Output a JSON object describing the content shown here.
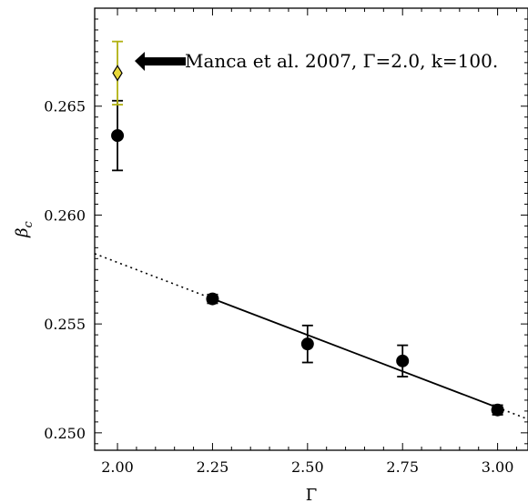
{
  "chart_data": {
    "type": "scatter",
    "xlabel": "Γ",
    "ylabel": "β_c",
    "xlim": [
      1.94,
      3.08
    ],
    "ylim": [
      0.2492,
      0.2695
    ],
    "xticks": [
      2.0,
      2.25,
      2.5,
      2.75,
      3.0
    ],
    "xtick_labels": [
      "2.00",
      "2.25",
      "2.50",
      "2.75",
      "3.00"
    ],
    "yticks": [
      0.25,
      0.255,
      0.26,
      0.265
    ],
    "ytick_labels": [
      "0.250",
      "0.255",
      "0.260",
      "0.265"
    ],
    "grid": false,
    "series": [
      {
        "marker": "circle",
        "color": "#000000",
        "points": [
          {
            "x": 2.0,
            "y": 0.26365,
            "err": 0.0016
          },
          {
            "x": 2.25,
            "y": 0.25615,
            "err": 0.0002
          },
          {
            "x": 2.5,
            "y": 0.25408,
            "err": 0.00085
          },
          {
            "x": 2.75,
            "y": 0.2533,
            "err": 0.00072
          },
          {
            "x": 3.0,
            "y": 0.25105,
            "err": 0.00022
          }
        ]
      },
      {
        "marker": "diamond",
        "color": "#e8d83a",
        "errcolor": "#b0b010",
        "points": [
          {
            "x": 2.0,
            "y": 0.26652,
            "err": 0.00145
          }
        ]
      }
    ],
    "fit_line": {
      "slope": -0.006667,
      "intercept": 0.27116,
      "solid_range": [
        2.25,
        3.0
      ]
    },
    "annotation": {
      "text": "Manca et al. 2007, Γ=2.0, k=100.",
      "points_to": {
        "x": 2.0,
        "y": 0.26652
      }
    }
  }
}
